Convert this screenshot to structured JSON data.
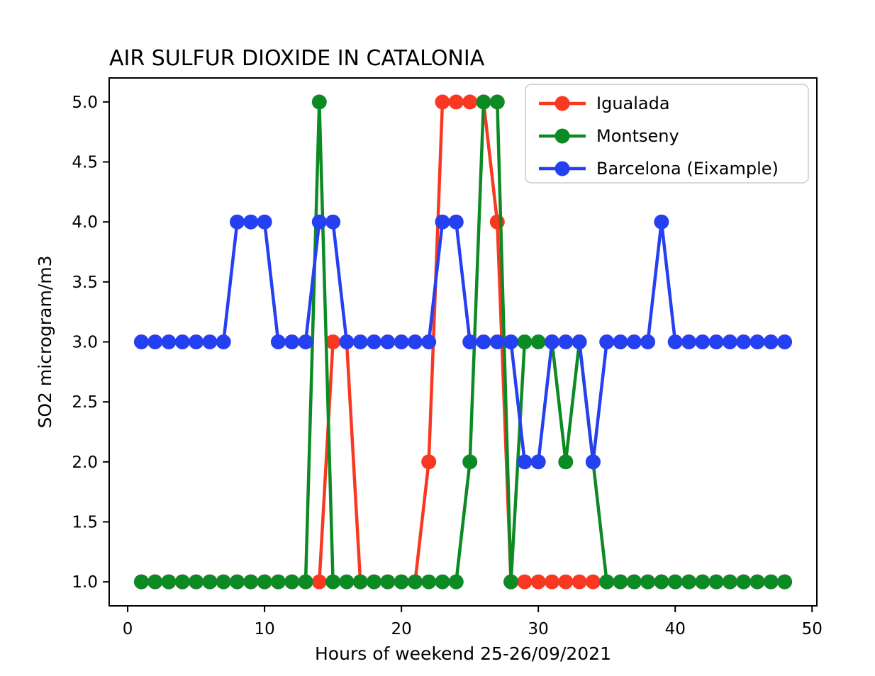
{
  "chart_data": {
    "type": "line",
    "title": "AIR SULFUR DIOXIDE IN CATALONIA",
    "xlabel": "Hours of weekend 25-26/09/2021",
    "ylabel": "SO2 microgram/m3",
    "grid": false,
    "legend_position": "upper right",
    "marker": "o",
    "xlim": [
      -1.35,
      50.35
    ],
    "ylim": [
      0.8,
      5.2
    ],
    "xticks": [
      0,
      10,
      20,
      30,
      40,
      50
    ],
    "yticks": [
      1.0,
      1.5,
      2.0,
      2.5,
      3.0,
      3.5,
      4.0,
      4.5,
      5.0
    ],
    "x": [
      1,
      2,
      3,
      4,
      5,
      6,
      7,
      8,
      9,
      10,
      11,
      12,
      13,
      14,
      15,
      16,
      17,
      18,
      19,
      20,
      21,
      22,
      23,
      24,
      25,
      26,
      27,
      28,
      29,
      30,
      31,
      32,
      33,
      34,
      35,
      36,
      37,
      38,
      39,
      40,
      41,
      42,
      43,
      44,
      45,
      46,
      47,
      48
    ],
    "series": [
      {
        "name": "Igualada",
        "color": "#f93822",
        "values": [
          1,
          1,
          1,
          1,
          1,
          1,
          1,
          1,
          1,
          1,
          1,
          1,
          1,
          1,
          3,
          3,
          1,
          1,
          1,
          1,
          1,
          2,
          5,
          5,
          5,
          5,
          4,
          1,
          1,
          1,
          1,
          1,
          1,
          1,
          1,
          1,
          1,
          1,
          1,
          1,
          1,
          1,
          1,
          1,
          1,
          1,
          1,
          1
        ]
      },
      {
        "name": "Montseny",
        "color": "#0c8a24",
        "values": [
          1,
          1,
          1,
          1,
          1,
          1,
          1,
          1,
          1,
          1,
          1,
          1,
          1,
          5,
          1,
          1,
          1,
          1,
          1,
          1,
          1,
          1,
          1,
          1,
          2,
          5,
          5,
          1,
          3,
          3,
          3,
          2,
          3,
          2,
          1,
          1,
          1,
          1,
          1,
          1,
          1,
          1,
          1,
          1,
          1,
          1,
          1,
          1
        ]
      },
      {
        "name": "Barcelona (Eixample)",
        "color": "#2440f0",
        "values": [
          3,
          3,
          3,
          3,
          3,
          3,
          3,
          4,
          4,
          4,
          3,
          3,
          3,
          4,
          4,
          3,
          3,
          3,
          3,
          3,
          3,
          3,
          4,
          4,
          3,
          3,
          3,
          3,
          2,
          2,
          3,
          3,
          3,
          2,
          3,
          3,
          3,
          3,
          4,
          3,
          3,
          3,
          3,
          3,
          3,
          3,
          3,
          3
        ]
      }
    ]
  }
}
